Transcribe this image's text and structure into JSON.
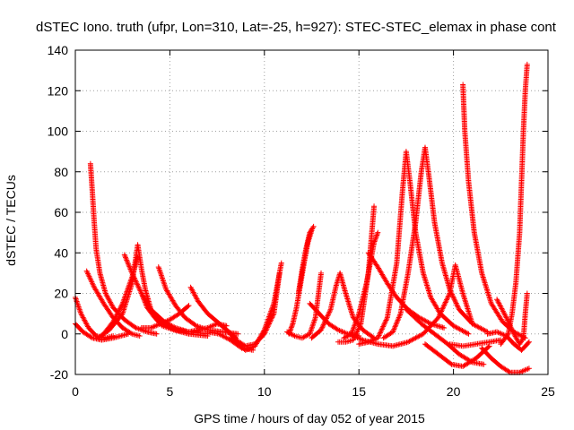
{
  "chart_data": {
    "type": "scatter",
    "title": "dSTEC Iono. truth (ufpr, Lon=310, Lat=-25, h=927): STEC-STEC_elemax in phase cont",
    "xlabel": "GPS time / hours of day 052 of year 2015",
    "ylabel": "dSTEC  / TECUs",
    "xlim": [
      0,
      25
    ],
    "ylim": [
      -20,
      140
    ],
    "xticks": [
      "0",
      "5",
      "10",
      "15",
      "20",
      "25"
    ],
    "yticks": [
      "-20",
      "0",
      "20",
      "40",
      "60",
      "80",
      "100",
      "120",
      "140"
    ],
    "grid": true,
    "marker": "+",
    "color": "#ff0000",
    "series": [
      {
        "x": [
          0.0,
          0.3,
          0.7,
          1.1,
          1.6,
          2.0
        ],
        "y": [
          18,
          10,
          3,
          -1,
          -2,
          -1
        ]
      },
      {
        "x": [
          0.0,
          0.4,
          0.9,
          1.4,
          2.0,
          2.8
        ],
        "y": [
          5,
          1,
          -2,
          -3,
          -2,
          0
        ]
      },
      {
        "x": [
          0.8,
          0.9,
          1.0,
          1.1,
          1.3,
          1.6,
          2.0,
          2.6,
          3.2,
          3.8,
          4.3
        ],
        "y": [
          84,
          70,
          55,
          42,
          30,
          20,
          13,
          7,
          3,
          1,
          0
        ]
      },
      {
        "x": [
          0.6,
          1.0,
          1.5,
          2.0,
          2.5,
          3.0,
          3.4
        ],
        "y": [
          31,
          23,
          15,
          8,
          3,
          0,
          -1
        ]
      },
      {
        "x": [
          1.2,
          1.8,
          2.5,
          3.0,
          3.3,
          3.5,
          3.7,
          4.0,
          4.6,
          5.3,
          6.0
        ],
        "y": [
          -2,
          2,
          10,
          25,
          44,
          32,
          22,
          12,
          5,
          2,
          1
        ]
      },
      {
        "x": [
          2.6,
          3.0,
          3.5,
          4.0,
          4.7,
          5.3,
          6.0,
          7.0
        ],
        "y": [
          39,
          30,
          20,
          12,
          6,
          3,
          1,
          0
        ]
      },
      {
        "x": [
          1.5,
          2.0,
          2.5,
          3.0,
          3.3
        ],
        "y": [
          0,
          6,
          15,
          28,
          38
        ]
      },
      {
        "x": [
          3.5,
          3.8,
          4.2,
          4.6,
          5.2,
          6.0,
          7.0
        ],
        "y": [
          20,
          13,
          8,
          4,
          2,
          0,
          -1
        ]
      },
      {
        "x": [
          4.4,
          4.8,
          5.3,
          5.8,
          6.4,
          7.0,
          7.8,
          8.6
        ],
        "y": [
          33,
          22,
          14,
          8,
          4,
          2,
          1,
          0
        ]
      },
      {
        "x": [
          3.5,
          4.0,
          4.5,
          5.0,
          5.5,
          6.0
        ],
        "y": [
          3,
          3,
          5,
          7,
          10,
          14
        ]
      },
      {
        "x": [
          6.1,
          6.5,
          7.0,
          7.5,
          8.0,
          8.5
        ],
        "y": [
          23,
          16,
          10,
          6,
          2,
          -2
        ]
      },
      {
        "x": [
          5.5,
          6.0,
          6.5,
          7.0,
          7.5,
          8.0
        ],
        "y": [
          2,
          1,
          2,
          3,
          5,
          4
        ]
      },
      {
        "x": [
          7.0,
          7.6,
          8.2,
          8.8,
          9.4
        ],
        "y": [
          1,
          0,
          -3,
          -7,
          -8
        ]
      },
      {
        "x": [
          8.2,
          8.6,
          9.0,
          9.5,
          10.0,
          10.5,
          10.9
        ],
        "y": [
          -2,
          -5,
          -8,
          -6,
          2,
          15,
          35
        ]
      },
      {
        "x": [
          8.0,
          8.5,
          9.0,
          9.5,
          10.0,
          10.5,
          10.8
        ],
        "y": [
          2,
          -3,
          -6,
          -5,
          0,
          10,
          30
        ]
      },
      {
        "x": [
          11.2,
          11.6,
          12.0,
          12.4,
          12.7,
          13.0
        ],
        "y": [
          1,
          -1,
          -2,
          0,
          8,
          30
        ]
      },
      {
        "x": [
          11.8,
          12.0,
          12.2,
          12.4,
          12.6
        ],
        "y": [
          20,
          32,
          42,
          50,
          53
        ]
      },
      {
        "x": [
          11.3,
          11.5,
          11.7,
          11.9,
          12.1,
          12.3,
          12.5
        ],
        "y": [
          0,
          5,
          13,
          24,
          35,
          45,
          51
        ]
      },
      {
        "x": [
          12.4,
          12.9,
          13.4,
          13.9,
          14.4,
          15.0
        ],
        "y": [
          15,
          10,
          5,
          2,
          0,
          -1
        ]
      },
      {
        "x": [
          12.5,
          13.0,
          13.5,
          13.8,
          14.0,
          14.3,
          14.7,
          15.2,
          15.8
        ],
        "y": [
          -2,
          2,
          12,
          24,
          30,
          20,
          8,
          2,
          -2
        ]
      },
      {
        "x": [
          13.9,
          14.3,
          14.7,
          15.1,
          15.5,
          15.8
        ],
        "y": [
          -4,
          -4,
          -3,
          5,
          30,
          63
        ]
      },
      {
        "x": [
          14.2,
          14.6,
          15.0,
          15.4,
          15.8,
          16.0
        ],
        "y": [
          -2,
          0,
          10,
          25,
          45,
          50
        ]
      },
      {
        "x": [
          15.5,
          16.0,
          16.5,
          17.0,
          17.6,
          18.2,
          18.8,
          19.5
        ],
        "y": [
          40,
          33,
          25,
          18,
          12,
          8,
          5,
          3
        ]
      },
      {
        "x": [
          15.0,
          15.5,
          16.0,
          16.5,
          17.0,
          17.3,
          17.5,
          17.7,
          18.0,
          18.4,
          18.8,
          19.3,
          20.0,
          20.8
        ],
        "y": [
          -5,
          -4,
          -2,
          8,
          35,
          70,
          90,
          75,
          50,
          30,
          18,
          10,
          4,
          0
        ]
      },
      {
        "x": [
          16.3,
          16.8,
          17.2,
          17.6,
          18.0,
          18.3,
          18.5,
          18.7,
          19.0,
          19.4,
          19.8,
          20.3,
          21.0,
          21.8
        ],
        "y": [
          -2,
          1,
          10,
          30,
          55,
          80,
          92,
          78,
          55,
          35,
          22,
          12,
          5,
          1
        ]
      },
      {
        "x": [
          14.5,
          15.2,
          16.0,
          16.8,
          17.6,
          18.4,
          19.2,
          19.8,
          20.1,
          20.5,
          21.0
        ],
        "y": [
          0,
          -3,
          -5,
          -6,
          -4,
          0,
          8,
          20,
          34,
          20,
          5
        ]
      },
      {
        "x": [
          17.5,
          18.3,
          19.0,
          19.7,
          20.3,
          21.0,
          21.6
        ],
        "y": [
          12,
          5,
          0,
          -5,
          -10,
          -14,
          -15
        ]
      },
      {
        "x": [
          18.5,
          19.2,
          19.9,
          20.5,
          21.2,
          21.9
        ],
        "y": [
          -5,
          -10,
          -15,
          -16,
          -12,
          -6
        ]
      },
      {
        "x": [
          20.5,
          20.6,
          20.8,
          21.1,
          21.5,
          22.0,
          22.6,
          23.2,
          23.8
        ],
        "y": [
          123,
          100,
          75,
          50,
          30,
          15,
          6,
          1,
          -2
        ]
      },
      {
        "x": [
          19.8,
          20.5,
          21.2,
          21.9,
          22.5
        ],
        "y": [
          -5,
          -6,
          -5,
          -4,
          -3
        ]
      },
      {
        "x": [
          21.5,
          22.0,
          22.5,
          23.0,
          23.5,
          24.0
        ],
        "y": [
          -7,
          -12,
          -16,
          -19,
          -19,
          -17
        ]
      },
      {
        "x": [
          22.3,
          22.8,
          23.2,
          23.5,
          23.7,
          23.8,
          23.9
        ],
        "y": [
          17,
          8,
          0,
          -5,
          -2,
          10,
          20
        ]
      },
      {
        "x": [
          22.5,
          22.9,
          23.1,
          23.3,
          23.5,
          23.6,
          23.7,
          23.8,
          23.9
        ],
        "y": [
          -5,
          0,
          10,
          25,
          50,
          75,
          100,
          120,
          133
        ]
      },
      {
        "x": [
          21.8,
          22.3,
          22.8,
          23.2,
          23.6,
          24.0
        ],
        "y": [
          0,
          1,
          -1,
          -5,
          -8,
          -4
        ]
      }
    ]
  }
}
